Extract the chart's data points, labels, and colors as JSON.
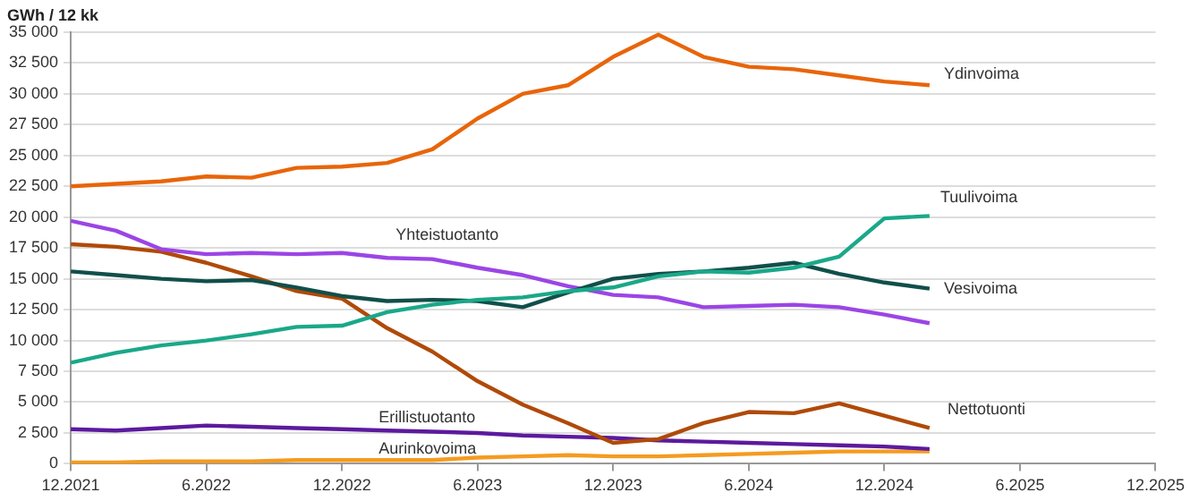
{
  "chart_data": {
    "type": "line",
    "ylabel": "GWh / 12 kk",
    "x": [
      "2021-12",
      "2022-02",
      "2022-04",
      "2022-06",
      "2022-08",
      "2022-10",
      "2022-12",
      "2023-02",
      "2023-04",
      "2023-06",
      "2023-08",
      "2023-10",
      "2023-12",
      "2024-02",
      "2024-04",
      "2024-06",
      "2024-08",
      "2024-10",
      "2024-12",
      "2025-02"
    ],
    "series": [
      {
        "name": "Ydinvoima",
        "color": "#e8650a",
        "values": [
          22500,
          22700,
          22900,
          23300,
          23200,
          24000,
          24100,
          24400,
          25500,
          28000,
          30000,
          30700,
          33000,
          34800,
          33000,
          32200,
          32000,
          31500,
          31000,
          30700
        ]
      },
      {
        "name": "Tuulivoima",
        "color": "#1aa889",
        "values": [
          8200,
          9000,
          9600,
          10000,
          10500,
          11100,
          11200,
          12300,
          12900,
          13300,
          13500,
          14000,
          14300,
          15200,
          15600,
          15500,
          15900,
          16800,
          19900,
          20100
        ]
      },
      {
        "name": "Vesivoima",
        "color": "#114f4a",
        "values": [
          15600,
          15300,
          15000,
          14800,
          14900,
          14300,
          13600,
          13200,
          13300,
          13200,
          12700,
          13900,
          15000,
          15400,
          15600,
          15900,
          16300,
          15400,
          14700,
          14200
        ]
      },
      {
        "name": "Yhteistuotanto",
        "color": "#9b45e6",
        "values": [
          19700,
          18900,
          17400,
          17000,
          17100,
          17000,
          17100,
          16700,
          16600,
          15900,
          15300,
          14400,
          13700,
          13500,
          12700,
          12800,
          12900,
          12700,
          12100,
          11400
        ]
      },
      {
        "name": "Nettotuonti",
        "color": "#b04a08",
        "values": [
          17800,
          17600,
          17200,
          16300,
          15200,
          14000,
          13400,
          11000,
          9100,
          6700,
          4800,
          3300,
          1700,
          2000,
          3300,
          4200,
          4100,
          4900,
          3900,
          2900
        ]
      },
      {
        "name": "Erillistuotanto",
        "color": "#5c1a9e",
        "values": [
          2800,
          2700,
          2900,
          3100,
          3000,
          2900,
          2800,
          2700,
          2600,
          2500,
          2300,
          2200,
          2100,
          1900,
          1800,
          1700,
          1600,
          1500,
          1400,
          1200
        ]
      },
      {
        "name": "Aurinkovoima",
        "color": "#f59b20",
        "values": [
          100,
          100,
          200,
          200,
          200,
          300,
          300,
          300,
          300,
          500,
          600,
          700,
          600,
          600,
          700,
          800,
          900,
          1000,
          1000,
          1000
        ]
      }
    ],
    "xlim": [
      "2021-12",
      "2025-12"
    ],
    "xticks": [
      {
        "value": "2021-12",
        "label": "12.2021"
      },
      {
        "value": "2022-06",
        "label": "6.2022"
      },
      {
        "value": "2022-12",
        "label": "12.2022"
      },
      {
        "value": "2023-06",
        "label": "6.2023"
      },
      {
        "value": "2023-12",
        "label": "12.2023"
      },
      {
        "value": "2024-06",
        "label": "6.2024"
      },
      {
        "value": "2024-12",
        "label": "12.2024"
      },
      {
        "value": "2025-06",
        "label": "6.2025"
      },
      {
        "value": "2025-12",
        "label": "12.2025"
      }
    ],
    "ylim": [
      0,
      35000
    ],
    "yticks": [
      {
        "value": 0,
        "label": "0"
      },
      {
        "value": 2500,
        "label": "2 500"
      },
      {
        "value": 5000,
        "label": "5 000"
      },
      {
        "value": 7500,
        "label": "7 500"
      },
      {
        "value": 10000,
        "label": "10 000"
      },
      {
        "value": 12500,
        "label": "12 500"
      },
      {
        "value": 15000,
        "label": "15 000"
      },
      {
        "value": 17500,
        "label": "17 500"
      },
      {
        "value": 20000,
        "label": "20 000"
      },
      {
        "value": 22500,
        "label": "22 500"
      },
      {
        "value": 25000,
        "label": "25 000"
      },
      {
        "value": 27500,
        "label": "27 500"
      },
      {
        "value": 30000,
        "label": "30 000"
      },
      {
        "value": 32500,
        "label": "32 500"
      },
      {
        "value": 35000,
        "label": "35 000"
      }
    ],
    "grid": "y",
    "legend": false,
    "marker": "none",
    "line_style": "solid"
  }
}
